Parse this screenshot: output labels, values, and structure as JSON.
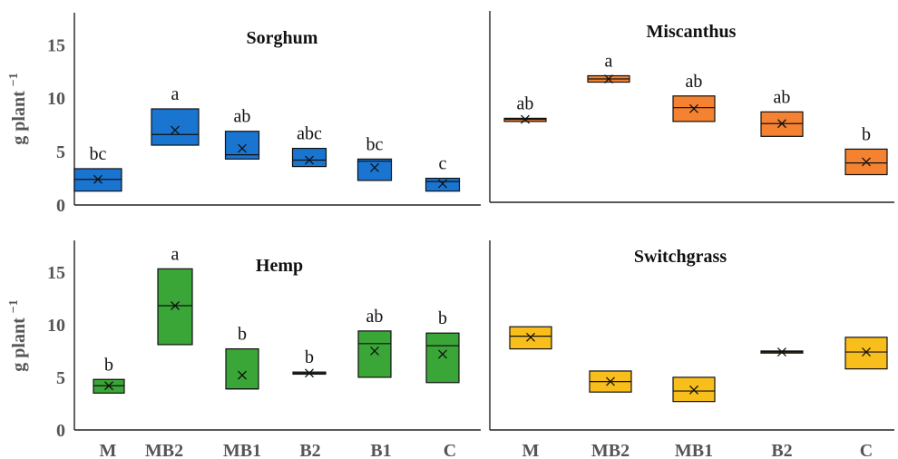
{
  "ylabel": "g plant",
  "ylabel_superscript": "−1",
  "chart_data": [
    {
      "type": "box",
      "title": "Sorghum",
      "color": "#1a75d1",
      "ylim": [
        0,
        18
      ],
      "yticks": [
        0,
        5,
        10,
        15
      ],
      "categories": [
        "M",
        "MB2",
        "MB1",
        "B2",
        "B1",
        "C"
      ],
      "boxes": [
        {
          "q1": 1.3,
          "median": 2.4,
          "q3": 3.4,
          "mean": 2.4,
          "label": "bc"
        },
        {
          "q1": 5.6,
          "median": 6.6,
          "q3": 9.0,
          "mean": 7.0,
          "label": "a"
        },
        {
          "q1": 4.3,
          "median": 4.7,
          "q3": 6.9,
          "mean": 5.3,
          "label": "ab"
        },
        {
          "q1": 3.6,
          "median": 4.2,
          "q3": 5.3,
          "mean": 4.2,
          "label": "abc"
        },
        {
          "q1": 2.3,
          "median": 4.1,
          "q3": 4.3,
          "mean": 3.5,
          "label": "bc"
        },
        {
          "q1": 1.3,
          "median": 2.2,
          "q3": 2.5,
          "mean": 2.0,
          "label": "c"
        }
      ]
    },
    {
      "type": "box",
      "title": "Miscanthus",
      "color": "#f58231",
      "ylim": [
        0,
        18
      ],
      "yticks": [
        0,
        5,
        10,
        15
      ],
      "categories": [
        "M",
        "MB2",
        "MB1",
        "B2",
        "C"
      ],
      "boxes": [
        {
          "q1": 7.6,
          "median": 7.8,
          "q3": 7.9,
          "mean": 7.8,
          "label": "ab"
        },
        {
          "q1": 11.3,
          "median": 11.6,
          "q3": 11.9,
          "mean": 11.6,
          "label": "a"
        },
        {
          "q1": 7.6,
          "median": 8.9,
          "q3": 10.0,
          "mean": 8.8,
          "label": "ab"
        },
        {
          "q1": 6.2,
          "median": 7.4,
          "q3": 8.5,
          "mean": 7.4,
          "label": "ab"
        },
        {
          "q1": 2.6,
          "median": 3.7,
          "q3": 5.0,
          "mean": 3.8,
          "label": "b"
        }
      ]
    },
    {
      "type": "box",
      "title": "Hemp",
      "color": "#3aa637",
      "ylim": [
        0,
        18
      ],
      "yticks": [
        0,
        5,
        10,
        15
      ],
      "categories": [
        "M",
        "MB2",
        "MB1",
        "B2",
        "B1",
        "C"
      ],
      "xlabels": [
        "M",
        "MB2",
        "MB1",
        "B2",
        "B1",
        "C"
      ],
      "boxes": [
        {
          "q1": 3.5,
          "median": 4.2,
          "q3": 4.8,
          "mean": 4.2,
          "label": "b"
        },
        {
          "q1": 8.1,
          "median": 11.8,
          "q3": 15.3,
          "mean": 11.8,
          "label": "a"
        },
        {
          "q1": 3.9,
          "median": 3.9,
          "q3": 7.7,
          "mean": 5.2,
          "label": "b"
        },
        {
          "q1": 5.3,
          "median": 5.4,
          "q3": 5.5,
          "mean": 5.4,
          "label": "b"
        },
        {
          "q1": 5.0,
          "median": 8.2,
          "q3": 9.4,
          "mean": 7.5,
          "label": "ab"
        },
        {
          "q1": 4.5,
          "median": 8.0,
          "q3": 9.2,
          "mean": 7.2,
          "label": "b"
        }
      ]
    },
    {
      "type": "box",
      "title": "Switchgrass",
      "color": "#f8be1c",
      "ylim": [
        0,
        18
      ],
      "yticks": [
        0,
        5,
        10,
        15
      ],
      "categories": [
        "M",
        "MB2",
        "MB1",
        "B2",
        "C"
      ],
      "xlabels": [
        "M",
        "MB2",
        "MB1",
        "B2",
        "C"
      ],
      "boxes": [
        {
          "q1": 7.7,
          "median": 8.9,
          "q3": 9.8,
          "mean": 8.8
        },
        {
          "q1": 3.6,
          "median": 4.6,
          "q3": 5.6,
          "mean": 4.6
        },
        {
          "q1": 2.7,
          "median": 3.7,
          "q3": 5.0,
          "mean": 3.8
        },
        {
          "q1": 7.3,
          "median": 7.4,
          "q3": 7.5,
          "mean": 7.4
        },
        {
          "q1": 5.8,
          "median": 7.4,
          "q3": 8.8,
          "mean": 7.4
        }
      ]
    }
  ]
}
